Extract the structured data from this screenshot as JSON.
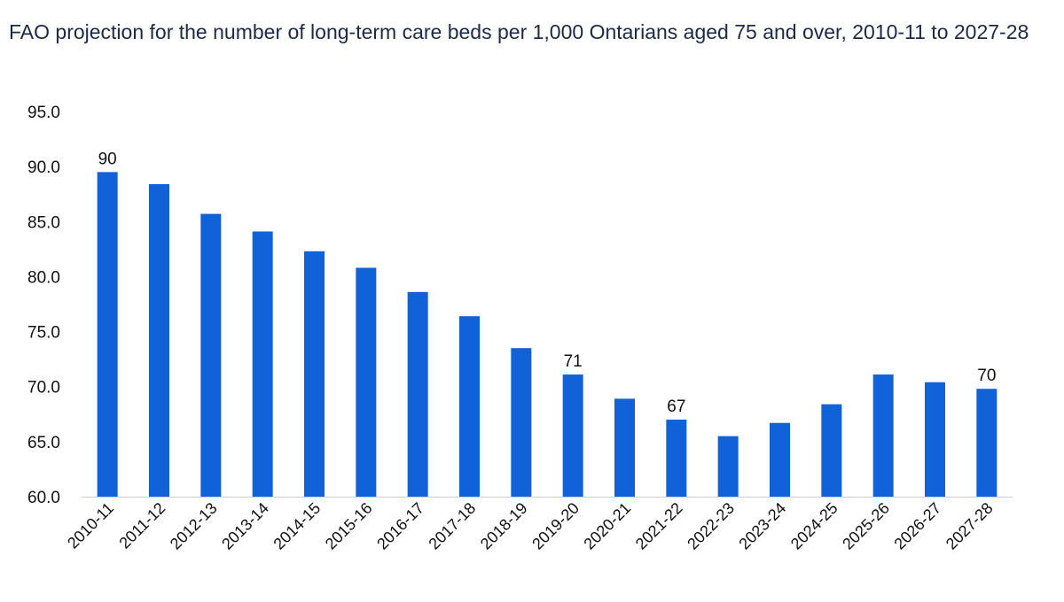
{
  "chart_data": {
    "type": "bar",
    "title": "FAO projection for the number of long-term care beds per 1,000 Ontarians aged 75 and over, 2010-11 to 2027-28",
    "xlabel": "",
    "ylabel": "",
    "categories": [
      "2010-11",
      "2011-12",
      "2012-13",
      "2013-14",
      "2014-15",
      "2015-16",
      "2016-17",
      "2017-18",
      "2018-19",
      "2019-20",
      "2020-21",
      "2021-22",
      "2022-23",
      "2023-24",
      "2024-25",
      "2025-26",
      "2026-27",
      "2027-28"
    ],
    "values": [
      89.5,
      88.4,
      85.7,
      84.1,
      82.3,
      80.8,
      78.6,
      76.4,
      73.5,
      71.1,
      68.9,
      67.0,
      65.5,
      66.7,
      68.4,
      71.1,
      70.4,
      69.8
    ],
    "data_labels": [
      {
        "index": 0,
        "text": "90"
      },
      {
        "index": 9,
        "text": "71"
      },
      {
        "index": 11,
        "text": "67"
      },
      {
        "index": 17,
        "text": "70"
      }
    ],
    "ylim": [
      60,
      95
    ],
    "yticks": [
      "60.0",
      "65.0",
      "70.0",
      "75.0",
      "80.0",
      "85.0",
      "90.0",
      "95.0"
    ],
    "grid": false,
    "legend": "none",
    "bar_color": "#1161d9",
    "axis_color": "#d0d0d0"
  }
}
